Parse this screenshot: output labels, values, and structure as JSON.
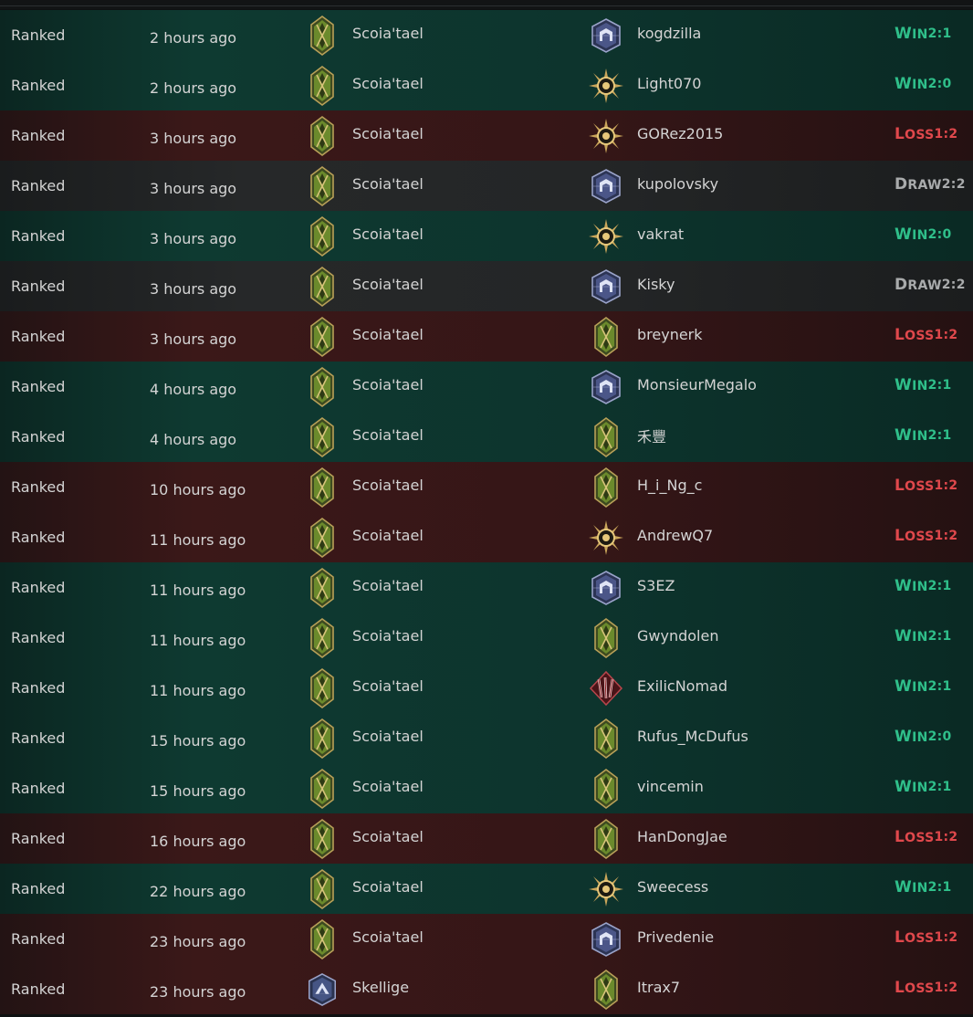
{
  "matches": [
    {
      "mode": "Ranked",
      "time": "2 hours ago",
      "faction": "Scoia'tael",
      "faction_icon": "scoiatael-icon",
      "opponent": "kogdzilla",
      "opponent_icon": "northern-realms-icon",
      "result_word": "WIN",
      "result_score": "2:1",
      "outcome": "win"
    },
    {
      "mode": "Ranked",
      "time": "2 hours ago",
      "faction": "Scoia'tael",
      "faction_icon": "scoiatael-icon",
      "opponent": "Light070",
      "opponent_icon": "nilfgaard-icon",
      "result_word": "WIN",
      "result_score": "2:0",
      "outcome": "win"
    },
    {
      "mode": "Ranked",
      "time": "3 hours ago",
      "faction": "Scoia'tael",
      "faction_icon": "scoiatael-icon",
      "opponent": "GORez2015",
      "opponent_icon": "nilfgaard-icon",
      "result_word": "LOSS",
      "result_score": "1:2",
      "outcome": "loss"
    },
    {
      "mode": "Ranked",
      "time": "3 hours ago",
      "faction": "Scoia'tael",
      "faction_icon": "scoiatael-icon",
      "opponent": "kupolovsky",
      "opponent_icon": "northern-realms-icon",
      "result_word": "DRAW",
      "result_score": "2:2",
      "outcome": "draw"
    },
    {
      "mode": "Ranked",
      "time": "3 hours ago",
      "faction": "Scoia'tael",
      "faction_icon": "scoiatael-icon",
      "opponent": "vakrat",
      "opponent_icon": "nilfgaard-icon",
      "result_word": "WIN",
      "result_score": "2:0",
      "outcome": "win"
    },
    {
      "mode": "Ranked",
      "time": "3 hours ago",
      "faction": "Scoia'tael",
      "faction_icon": "scoiatael-icon",
      "opponent": "Kisky",
      "opponent_icon": "northern-realms-icon",
      "result_word": "DRAW",
      "result_score": "2:2",
      "outcome": "draw"
    },
    {
      "mode": "Ranked",
      "time": "3 hours ago",
      "faction": "Scoia'tael",
      "faction_icon": "scoiatael-icon",
      "opponent": "breynerk",
      "opponent_icon": "scoiatael-icon",
      "result_word": "LOSS",
      "result_score": "1:2",
      "outcome": "loss"
    },
    {
      "mode": "Ranked",
      "time": "4 hours ago",
      "faction": "Scoia'tael",
      "faction_icon": "scoiatael-icon",
      "opponent": "MonsieurMegalo",
      "opponent_icon": "northern-realms-icon",
      "result_word": "WIN",
      "result_score": "2:1",
      "outcome": "win"
    },
    {
      "mode": "Ranked",
      "time": "4 hours ago",
      "faction": "Scoia'tael",
      "faction_icon": "scoiatael-icon",
      "opponent": "禾豐",
      "opponent_icon": "scoiatael-icon",
      "result_word": "WIN",
      "result_score": "2:1",
      "outcome": "win"
    },
    {
      "mode": "Ranked",
      "time": "10 hours ago",
      "faction": "Scoia'tael",
      "faction_icon": "scoiatael-icon",
      "opponent": "H_i_Ng_c",
      "opponent_icon": "scoiatael-icon",
      "result_word": "LOSS",
      "result_score": "1:2",
      "outcome": "loss"
    },
    {
      "mode": "Ranked",
      "time": "11 hours ago",
      "faction": "Scoia'tael",
      "faction_icon": "scoiatael-icon",
      "opponent": "AndrewQ7",
      "opponent_icon": "nilfgaard-icon",
      "result_word": "LOSS",
      "result_score": "1:2",
      "outcome": "loss"
    },
    {
      "mode": "Ranked",
      "time": "11 hours ago",
      "faction": "Scoia'tael",
      "faction_icon": "scoiatael-icon",
      "opponent": "S3EZ",
      "opponent_icon": "northern-realms-icon",
      "result_word": "WIN",
      "result_score": "2:1",
      "outcome": "win"
    },
    {
      "mode": "Ranked",
      "time": "11 hours ago",
      "faction": "Scoia'tael",
      "faction_icon": "scoiatael-icon",
      "opponent": "Gwyndolen",
      "opponent_icon": "scoiatael-icon",
      "result_word": "WIN",
      "result_score": "2:1",
      "outcome": "win"
    },
    {
      "mode": "Ranked",
      "time": "11 hours ago",
      "faction": "Scoia'tael",
      "faction_icon": "scoiatael-icon",
      "opponent": "ExilicNomad",
      "opponent_icon": "monsters-icon",
      "result_word": "WIN",
      "result_score": "2:1",
      "outcome": "win"
    },
    {
      "mode": "Ranked",
      "time": "15 hours ago",
      "faction": "Scoia'tael",
      "faction_icon": "scoiatael-icon",
      "opponent": "Rufus_McDufus",
      "opponent_icon": "scoiatael-icon",
      "result_word": "WIN",
      "result_score": "2:0",
      "outcome": "win"
    },
    {
      "mode": "Ranked",
      "time": "15 hours ago",
      "faction": "Scoia'tael",
      "faction_icon": "scoiatael-icon",
      "opponent": "vincemin",
      "opponent_icon": "scoiatael-icon",
      "result_word": "WIN",
      "result_score": "2:1",
      "outcome": "win"
    },
    {
      "mode": "Ranked",
      "time": "16 hours ago",
      "faction": "Scoia'tael",
      "faction_icon": "scoiatael-icon",
      "opponent": "HanDongJae",
      "opponent_icon": "scoiatael-icon",
      "result_word": "LOSS",
      "result_score": "1:2",
      "outcome": "loss"
    },
    {
      "mode": "Ranked",
      "time": "22 hours ago",
      "faction": "Scoia'tael",
      "faction_icon": "scoiatael-icon",
      "opponent": "Sweecess",
      "opponent_icon": "nilfgaard-icon",
      "result_word": "WIN",
      "result_score": "2:1",
      "outcome": "win"
    },
    {
      "mode": "Ranked",
      "time": "23 hours ago",
      "faction": "Scoia'tael",
      "faction_icon": "scoiatael-icon",
      "opponent": "Privedenie",
      "opponent_icon": "northern-realms-icon",
      "result_word": "LOSS",
      "result_score": "1:2",
      "outcome": "loss"
    },
    {
      "mode": "Ranked",
      "time": "23 hours ago",
      "faction": "Skellige",
      "faction_icon": "skellige-icon",
      "opponent": "Itrax7",
      "opponent_icon": "scoiatael-icon",
      "result_word": "LOSS",
      "result_score": "1:2",
      "outcome": "loss"
    }
  ],
  "colors": {
    "win": "#2fbf8a",
    "loss": "#e0484c",
    "draw": "#a9abac"
  }
}
